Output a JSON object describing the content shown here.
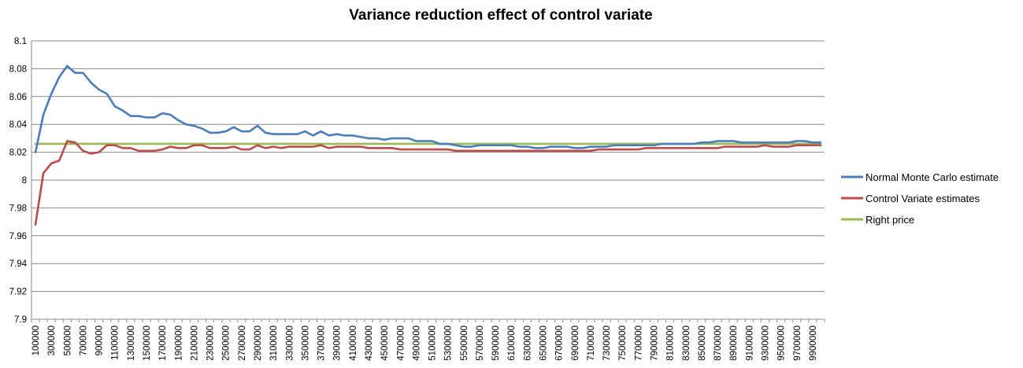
{
  "chart_data": {
    "type": "line",
    "title": "Variance reduction effect of control variate",
    "xlabel": "",
    "ylabel": "",
    "ylim": [
      7.9,
      8.1
    ],
    "yticks": [
      "7.9",
      "7.92",
      "7.94",
      "7.96",
      "7.98",
      "8",
      "8.02",
      "8.04",
      "8.06",
      "8.08",
      "8.1"
    ],
    "grid": true,
    "legend_position": "right",
    "x_start": 100000,
    "x_step": 100000,
    "x_count": 100,
    "x_tick_labels": [
      "100000",
      "300000",
      "500000",
      "700000",
      "900000",
      "1100000",
      "1300000",
      "1500000",
      "1700000",
      "1900000",
      "2100000",
      "2300000",
      "2500000",
      "2700000",
      "2900000",
      "3100000",
      "3300000",
      "3500000",
      "3700000",
      "3900000",
      "4100000",
      "4300000",
      "4500000",
      "4700000",
      "4900000",
      "5100000",
      "5300000",
      "5500000",
      "5700000",
      "5900000",
      "6100000",
      "6300000",
      "6500000",
      "6700000",
      "6900000",
      "7100000",
      "7300000",
      "7500000",
      "7700000",
      "7900000",
      "8100000",
      "8300000",
      "8500000",
      "8700000",
      "8900000",
      "9100000",
      "9300000",
      "9500000",
      "9700000",
      "9900000"
    ],
    "series": [
      {
        "name": "Normal Monte Carlo estimate",
        "color": "#4a7ebb",
        "values": [
          8.02,
          8.047,
          8.062,
          8.074,
          8.082,
          8.077,
          8.077,
          8.07,
          8.065,
          8.062,
          8.053,
          8.05,
          8.046,
          8.046,
          8.045,
          8.045,
          8.048,
          8.047,
          8.043,
          8.04,
          8.039,
          8.037,
          8.034,
          8.034,
          8.035,
          8.038,
          8.035,
          8.035,
          8.039,
          8.034,
          8.033,
          8.033,
          8.033,
          8.033,
          8.035,
          8.032,
          8.035,
          8.032,
          8.033,
          8.032,
          8.032,
          8.031,
          8.03,
          8.03,
          8.029,
          8.03,
          8.03,
          8.03,
          8.028,
          8.028,
          8.028,
          8.026,
          8.026,
          8.025,
          8.024,
          8.024,
          8.025,
          8.025,
          8.025,
          8.025,
          8.025,
          8.024,
          8.024,
          8.023,
          8.023,
          8.024,
          8.024,
          8.024,
          8.023,
          8.023,
          8.024,
          8.024,
          8.024,
          8.025,
          8.025,
          8.025,
          8.025,
          8.025,
          8.025,
          8.026,
          8.026,
          8.026,
          8.026,
          8.026,
          8.027,
          8.027,
          8.028,
          8.028,
          8.028,
          8.027,
          8.027,
          8.027,
          8.027,
          8.027,
          8.027,
          8.027,
          8.028,
          8.028,
          8.027,
          8.027
        ]
      },
      {
        "name": "Control Variate estimates",
        "color": "#be4b48",
        "values": [
          7.968,
          8.005,
          8.012,
          8.014,
          8.028,
          8.027,
          8.021,
          8.019,
          8.02,
          8.025,
          8.025,
          8.023,
          8.023,
          8.021,
          8.021,
          8.021,
          8.022,
          8.024,
          8.023,
          8.023,
          8.025,
          8.025,
          8.023,
          8.023,
          8.023,
          8.024,
          8.022,
          8.022,
          8.025,
          8.023,
          8.024,
          8.023,
          8.024,
          8.024,
          8.024,
          8.024,
          8.025,
          8.023,
          8.024,
          8.024,
          8.024,
          8.024,
          8.023,
          8.023,
          8.023,
          8.023,
          8.022,
          8.022,
          8.022,
          8.022,
          8.022,
          8.022,
          8.022,
          8.021,
          8.021,
          8.021,
          8.021,
          8.021,
          8.021,
          8.021,
          8.021,
          8.021,
          8.021,
          8.021,
          8.021,
          8.021,
          8.021,
          8.021,
          8.021,
          8.021,
          8.021,
          8.022,
          8.022,
          8.022,
          8.022,
          8.022,
          8.022,
          8.023,
          8.023,
          8.023,
          8.023,
          8.023,
          8.023,
          8.023,
          8.023,
          8.023,
          8.023,
          8.024,
          8.024,
          8.024,
          8.024,
          8.024,
          8.025,
          8.024,
          8.024,
          8.024,
          8.025,
          8.025,
          8.025,
          8.025
        ]
      },
      {
        "name": "Right price",
        "color": "#98b954",
        "values": [
          8.026,
          8.026,
          8.026,
          8.026,
          8.026,
          8.026,
          8.026,
          8.026,
          8.026,
          8.026,
          8.026,
          8.026,
          8.026,
          8.026,
          8.026,
          8.026,
          8.026,
          8.026,
          8.026,
          8.026,
          8.026,
          8.026,
          8.026,
          8.026,
          8.026,
          8.026,
          8.026,
          8.026,
          8.026,
          8.026,
          8.026,
          8.026,
          8.026,
          8.026,
          8.026,
          8.026,
          8.026,
          8.026,
          8.026,
          8.026,
          8.026,
          8.026,
          8.026,
          8.026,
          8.026,
          8.026,
          8.026,
          8.026,
          8.026,
          8.026,
          8.026,
          8.026,
          8.026,
          8.026,
          8.026,
          8.026,
          8.026,
          8.026,
          8.026,
          8.026,
          8.026,
          8.026,
          8.026,
          8.026,
          8.026,
          8.026,
          8.026,
          8.026,
          8.026,
          8.026,
          8.026,
          8.026,
          8.026,
          8.026,
          8.026,
          8.026,
          8.026,
          8.026,
          8.026,
          8.026,
          8.026,
          8.026,
          8.026,
          8.026,
          8.026,
          8.026,
          8.026,
          8.026,
          8.026,
          8.026,
          8.026,
          8.026,
          8.026,
          8.026,
          8.026,
          8.026,
          8.026,
          8.026,
          8.026,
          8.026
        ]
      }
    ]
  }
}
